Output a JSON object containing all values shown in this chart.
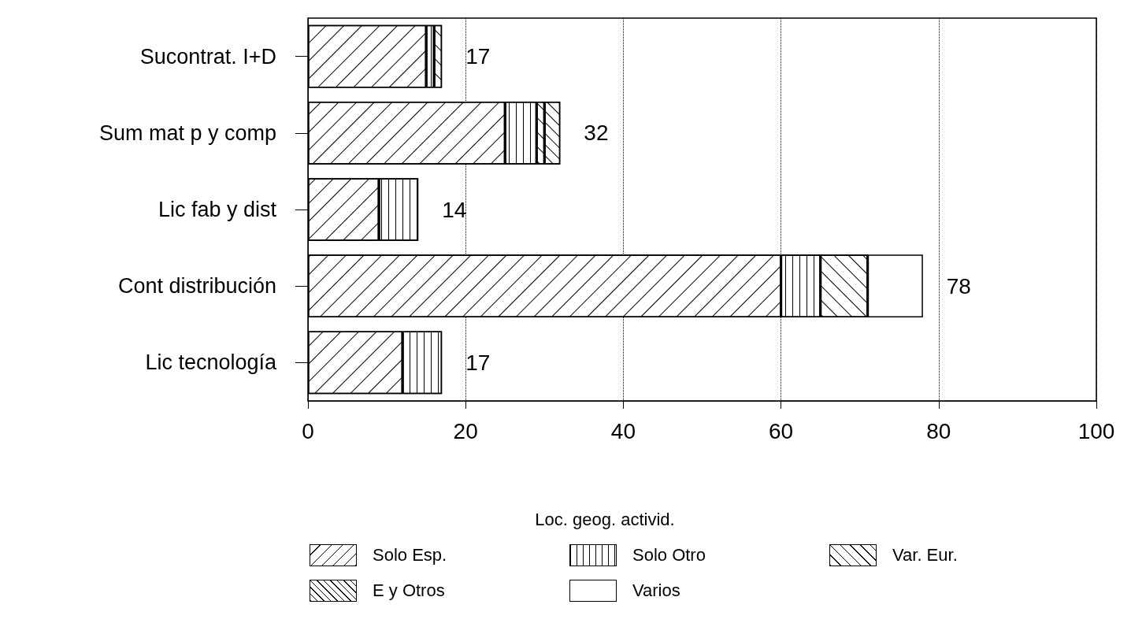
{
  "chart_data": {
    "type": "bar",
    "orientation": "horizontal",
    "stacked": true,
    "categories": [
      "Sucontrat. I+D",
      "Sum mat p y comp",
      "Lic fab y dist",
      "Cont distribución",
      "Lic tecnología"
    ],
    "series": [
      {
        "name": "Solo Esp.",
        "color": "#ffffff",
        "values": [
          15,
          25,
          9,
          60,
          12
        ]
      },
      {
        "name": "Solo Otro",
        "color": "#ffffff",
        "values": [
          1,
          4,
          5,
          5,
          5
        ]
      },
      {
        "name": "Var. Eur.",
        "color": "#ffffff",
        "values": [
          1,
          1,
          null,
          6,
          null
        ]
      },
      {
        "name": "E y Otros",
        "color": "#ffffff",
        "values": [
          null,
          2,
          null,
          null,
          null
        ]
      },
      {
        "name": "Varios",
        "color": "#ffffff",
        "values": [
          null,
          null,
          null,
          7,
          null
        ]
      }
    ],
    "totals": [
      "17",
      "32",
      "14",
      "78",
      "17"
    ],
    "xlim": [
      0,
      100
    ],
    "xticks": [
      0,
      20,
      40,
      60,
      80,
      100
    ],
    "grid": "x",
    "legend": "bottom",
    "legend_title": "Loc. geog. activid."
  }
}
